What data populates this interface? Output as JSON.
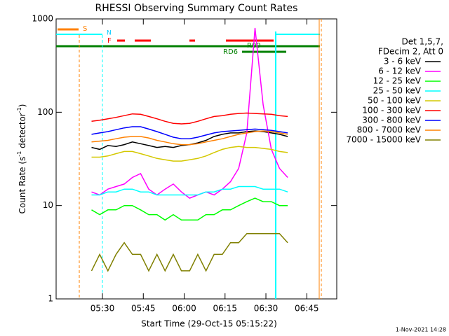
{
  "chart_data": {
    "type": "line",
    "title": "RHESSI Observing Summary Count Rates",
    "x_label": "Start Time (29-Oct-15 05:15:22)",
    "y_label_parts": [
      "Count Rate (s",
      "-1",
      " detector",
      "-1",
      ")"
    ],
    "log_y": true,
    "ylim": [
      1,
      1000
    ],
    "yticks": [
      1,
      10,
      100,
      1000
    ],
    "xlim": [
      313,
      416
    ],
    "xticks": [
      {
        "value": 330,
        "label": "05:30"
      },
      {
        "value": 345,
        "label": "05:45"
      },
      {
        "value": 360,
        "label": "06:00"
      },
      {
        "value": 375,
        "label": "06:15"
      },
      {
        "value": 390,
        "label": "06:30"
      },
      {
        "value": 405,
        "label": "06:45"
      }
    ],
    "legend_header": [
      "Det 1,5,7,",
      "FDecim 2, Att 0"
    ],
    "flags": {
      "s": "S",
      "n": "N",
      "f": "F",
      "r00": "R00",
      "rd6": "RD6"
    },
    "timestamp": "1-Nov-2021 14:28",
    "x": [
      326,
      329,
      332,
      335,
      338,
      341,
      344,
      347,
      350,
      353,
      356,
      359,
      362,
      365,
      368,
      371,
      374,
      377,
      380,
      383,
      386,
      389,
      392,
      395,
      398
    ],
    "series": [
      {
        "name": "3 - 6 keV",
        "color": "#000000",
        "values": [
          42,
          40,
          44,
          43,
          45,
          48,
          46,
          44,
          42,
          43,
          42,
          44,
          45,
          47,
          50,
          55,
          58,
          60,
          60,
          62,
          63,
          62,
          60,
          58,
          55
        ]
      },
      {
        "name": "6 - 12 keV",
        "color": "#ff00ff",
        "values": [
          14,
          13,
          15,
          16,
          17,
          20,
          22,
          15,
          13,
          15,
          17,
          14,
          12,
          13,
          14,
          13,
          15,
          18,
          25,
          60,
          800,
          120,
          40,
          25,
          20
        ]
      },
      {
        "name": "12 - 25 keV",
        "color": "#00ff00",
        "values": [
          9,
          8,
          9,
          9,
          10,
          10,
          9,
          8,
          8,
          7,
          8,
          7,
          7,
          7,
          8,
          8,
          9,
          9,
          10,
          11,
          12,
          11,
          11,
          10,
          10
        ]
      },
      {
        "name": "25 - 50 keV",
        "color": "#00ffff",
        "values": [
          13,
          13,
          14,
          14,
          15,
          15,
          14,
          14,
          13,
          13,
          13,
          13,
          13,
          13,
          14,
          14,
          15,
          15,
          16,
          16,
          16,
          15,
          15,
          15,
          14
        ]
      },
      {
        "name": "50 - 100 keV",
        "color": "#d4c800",
        "values": [
          33,
          33,
          34,
          36,
          38,
          38,
          36,
          34,
          32,
          31,
          30,
          30,
          31,
          32,
          34,
          37,
          40,
          42,
          43,
          42,
          42,
          41,
          40,
          38,
          37
        ]
      },
      {
        "name": "100 - 300 keV",
        "color": "#ff0000",
        "values": [
          80,
          82,
          85,
          88,
          92,
          96,
          95,
          90,
          85,
          80,
          76,
          75,
          76,
          80,
          85,
          90,
          92,
          95,
          97,
          98,
          97,
          96,
          95,
          92,
          90
        ]
      },
      {
        "name": "300 - 800 keV",
        "color": "#0000ff",
        "values": [
          58,
          60,
          62,
          65,
          68,
          70,
          70,
          66,
          62,
          58,
          54,
          52,
          52,
          54,
          57,
          60,
          62,
          63,
          64,
          65,
          66,
          65,
          64,
          62,
          60
        ]
      },
      {
        "name": "800 - 7000 keV",
        "color": "#ff8000",
        "values": [
          48,
          49,
          50,
          52,
          54,
          55,
          55,
          53,
          50,
          48,
          46,
          45,
          45,
          46,
          48,
          50,
          52,
          55,
          58,
          60,
          62,
          63,
          62,
          60,
          58
        ]
      },
      {
        "name": "7000 - 15000 keV",
        "color": "#808000",
        "values": [
          2,
          3,
          2,
          3,
          4,
          3,
          3,
          2,
          3,
          2,
          3,
          2,
          2,
          3,
          2,
          3,
          3,
          4,
          4,
          5,
          5,
          5,
          5,
          5,
          4
        ]
      }
    ]
  }
}
